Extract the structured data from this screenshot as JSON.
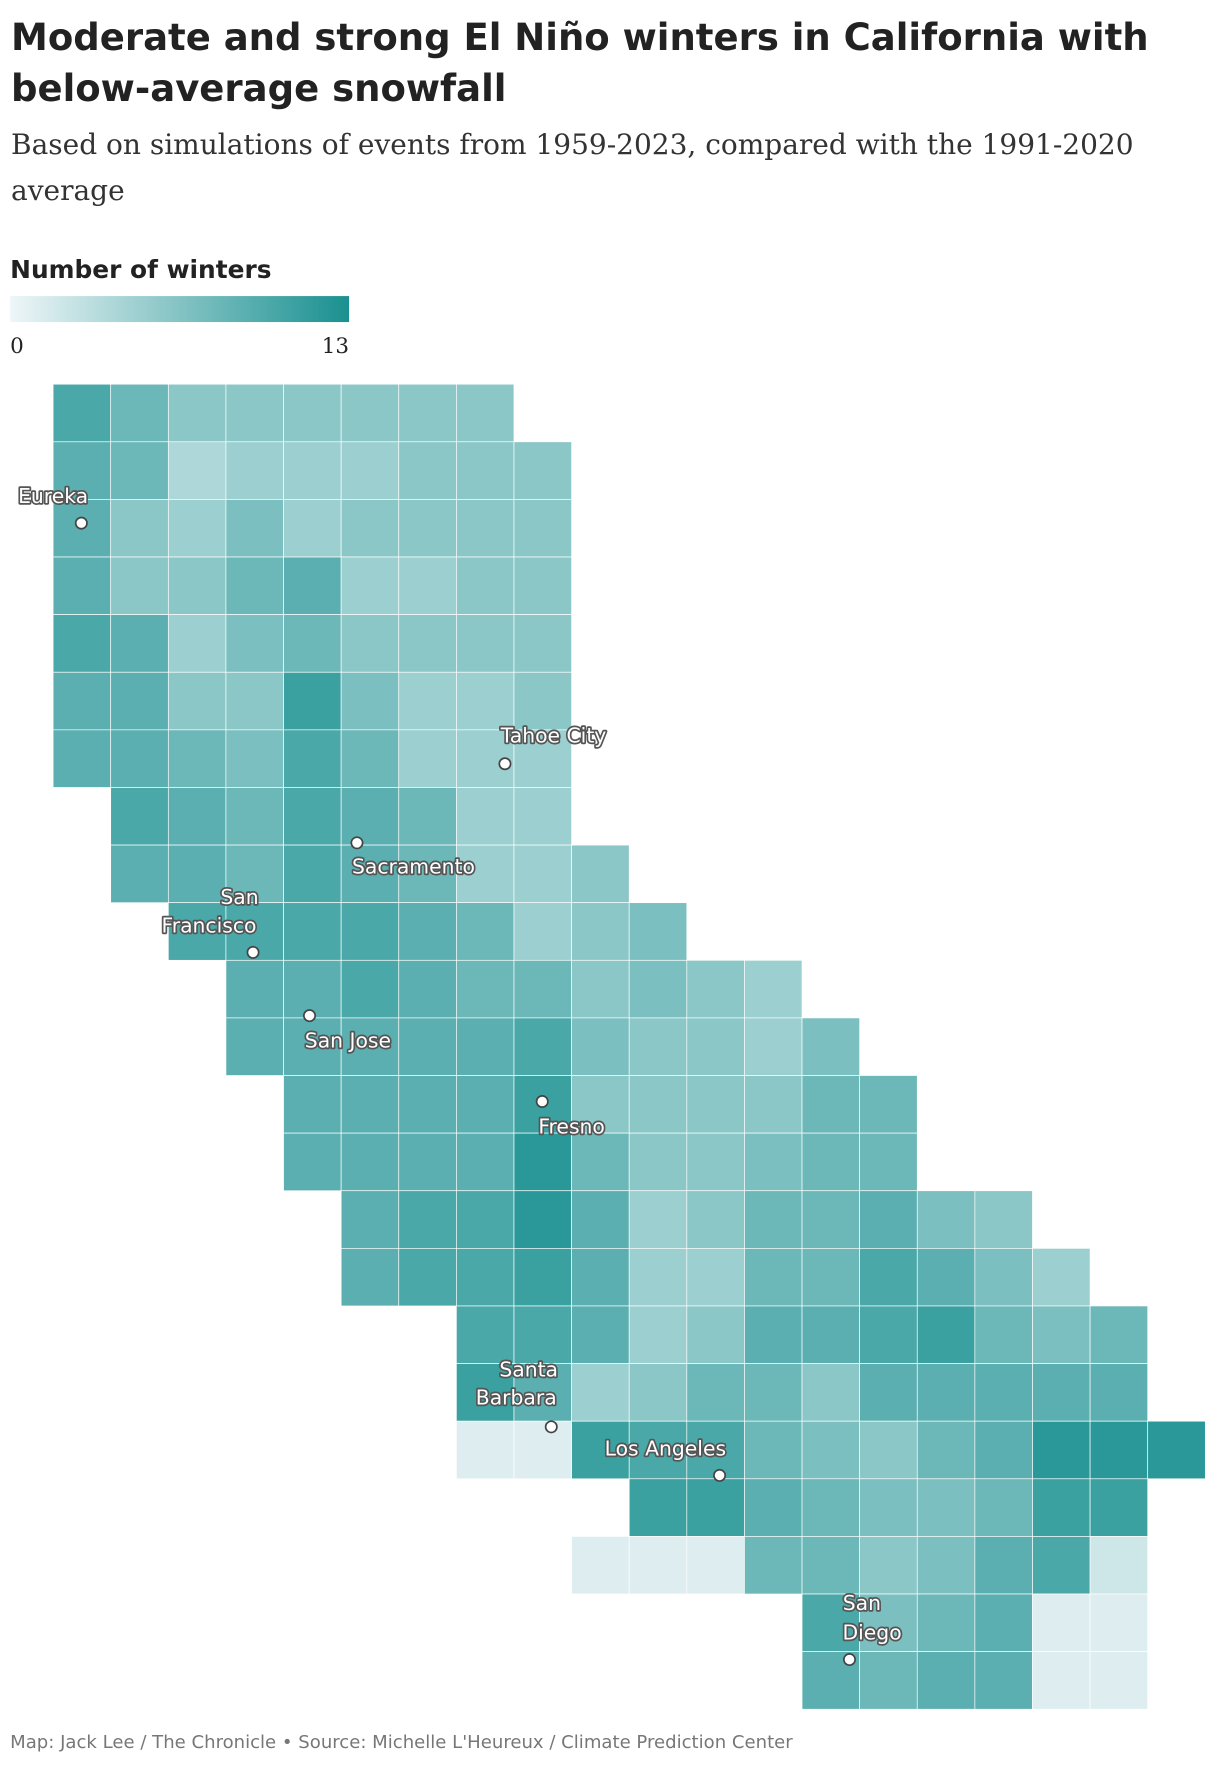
{
  "header": {
    "title": "Moderate and strong El Niño winters in California with below-average snowfall",
    "subtitle": "Based on simulations of events from 1959-2023, compared with the 1991-2020 average"
  },
  "legend": {
    "title": "Number of winters",
    "min": 0,
    "max": 13
  },
  "grid": {
    "rows": [
      [
        10,
        8,
        6,
        6,
        6,
        6,
        6,
        6,
        null,
        null,
        null,
        null,
        null,
        null,
        null,
        null,
        null,
        null,
        null,
        null
      ],
      [
        9,
        8,
        4,
        5,
        5,
        5,
        6,
        6,
        6,
        null,
        null,
        null,
        null,
        null,
        null,
        null,
        null,
        null,
        null,
        null
      ],
      [
        9,
        6,
        5,
        7,
        5,
        6,
        6,
        6,
        6,
        null,
        null,
        null,
        null,
        null,
        null,
        null,
        null,
        null,
        null,
        null
      ],
      [
        9,
        6,
        6,
        8,
        9,
        5,
        5,
        6,
        6,
        null,
        null,
        null,
        null,
        null,
        null,
        null,
        null,
        null,
        null,
        null
      ],
      [
        10,
        9,
        5,
        7,
        8,
        6,
        6,
        6,
        6,
        null,
        null,
        null,
        null,
        null,
        null,
        null,
        null,
        null,
        null,
        null
      ],
      [
        9,
        9,
        6,
        6,
        11,
        7,
        5,
        5,
        6,
        null,
        null,
        null,
        null,
        null,
        null,
        null,
        null,
        null,
        null,
        null
      ],
      [
        9,
        9,
        8,
        7,
        10,
        8,
        5,
        5,
        5,
        null,
        null,
        null,
        null,
        null,
        null,
        null,
        null,
        null,
        null,
        null
      ],
      [
        null,
        10,
        9,
        8,
        10,
        9,
        8,
        5,
        5,
        null,
        null,
        null,
        null,
        null,
        null,
        null,
        null,
        null,
        null,
        null
      ],
      [
        null,
        9,
        9,
        8,
        10,
        9,
        8,
        5,
        5,
        6,
        null,
        null,
        null,
        null,
        null,
        null,
        null,
        null,
        null,
        null
      ],
      [
        null,
        null,
        10,
        10,
        10,
        10,
        9,
        8,
        5,
        6,
        7,
        null,
        null,
        null,
        null,
        null,
        null,
        null,
        null,
        null
      ],
      [
        null,
        null,
        null,
        9,
        9,
        10,
        9,
        8,
        8,
        6,
        7,
        6,
        5,
        null,
        null,
        null,
        null,
        null,
        null,
        null
      ],
      [
        null,
        null,
        null,
        9,
        9,
        9,
        9,
        9,
        10,
        7,
        6,
        6,
        5,
        7,
        null,
        null,
        null,
        null,
        null,
        null
      ],
      [
        null,
        null,
        null,
        null,
        9,
        9,
        9,
        9,
        11,
        6,
        6,
        6,
        6,
        8,
        8,
        null,
        null,
        null,
        null,
        null
      ],
      [
        null,
        null,
        null,
        null,
        9,
        9,
        9,
        9,
        12,
        8,
        6,
        6,
        7,
        8,
        8,
        null,
        null,
        null,
        null,
        null
      ],
      [
        null,
        null,
        null,
        null,
        null,
        9,
        10,
        10,
        12,
        9,
        5,
        6,
        8,
        8,
        9,
        7,
        6,
        null,
        null,
        null
      ],
      [
        null,
        null,
        null,
        null,
        null,
        9,
        10,
        10,
        11,
        9,
        5,
        5,
        8,
        8,
        10,
        9,
        7,
        5,
        null,
        null
      ],
      [
        null,
        null,
        null,
        null,
        null,
        null,
        null,
        10,
        10,
        9,
        5,
        6,
        9,
        9,
        10,
        11,
        8,
        7,
        8,
        null
      ],
      [
        null,
        null,
        null,
        null,
        null,
        null,
        null,
        11,
        9,
        5,
        6,
        8,
        8,
        6,
        9,
        9,
        9,
        9,
        9,
        null
      ],
      [
        null,
        null,
        null,
        null,
        null,
        null,
        null,
        1,
        1,
        11,
        10,
        10,
        8,
        7,
        6,
        8,
        9,
        12,
        12,
        12
      ],
      [
        null,
        null,
        null,
        null,
        null,
        null,
        null,
        null,
        null,
        null,
        11,
        11,
        9,
        8,
        7,
        7,
        8,
        11,
        11,
        null
      ],
      [
        null,
        null,
        null,
        null,
        null,
        null,
        null,
        null,
        null,
        1,
        1,
        1,
        8,
        8,
        6,
        7,
        9,
        10,
        2,
        null
      ],
      [
        null,
        null,
        null,
        null,
        null,
        null,
        null,
        null,
        null,
        null,
        null,
        null,
        null,
        10,
        7,
        8,
        9,
        1,
        1,
        null
      ],
      [
        null,
        null,
        null,
        null,
        null,
        null,
        null,
        null,
        null,
        null,
        null,
        null,
        null,
        9,
        8,
        9,
        9,
        1,
        1,
        null
      ]
    ]
  },
  "cities": [
    {
      "lines": [
        "Eureka"
      ]
    },
    {
      "lines": [
        "Tahoe City"
      ]
    },
    {
      "lines": [
        "Sacramento"
      ]
    },
    {
      "lines": [
        "San",
        "Francisco"
      ]
    },
    {
      "lines": [
        "San Jose"
      ]
    },
    {
      "lines": [
        "Fresno"
      ]
    },
    {
      "lines": [
        "Santa",
        "Barbara"
      ]
    },
    {
      "lines": [
        "Los Angeles"
      ]
    },
    {
      "lines": [
        "San",
        "Diego"
      ]
    }
  ],
  "footer": {
    "source": "Map: Jack Lee / The Chronicle • Source: Michelle L'Heureux / Climate Prediction Center"
  }
}
